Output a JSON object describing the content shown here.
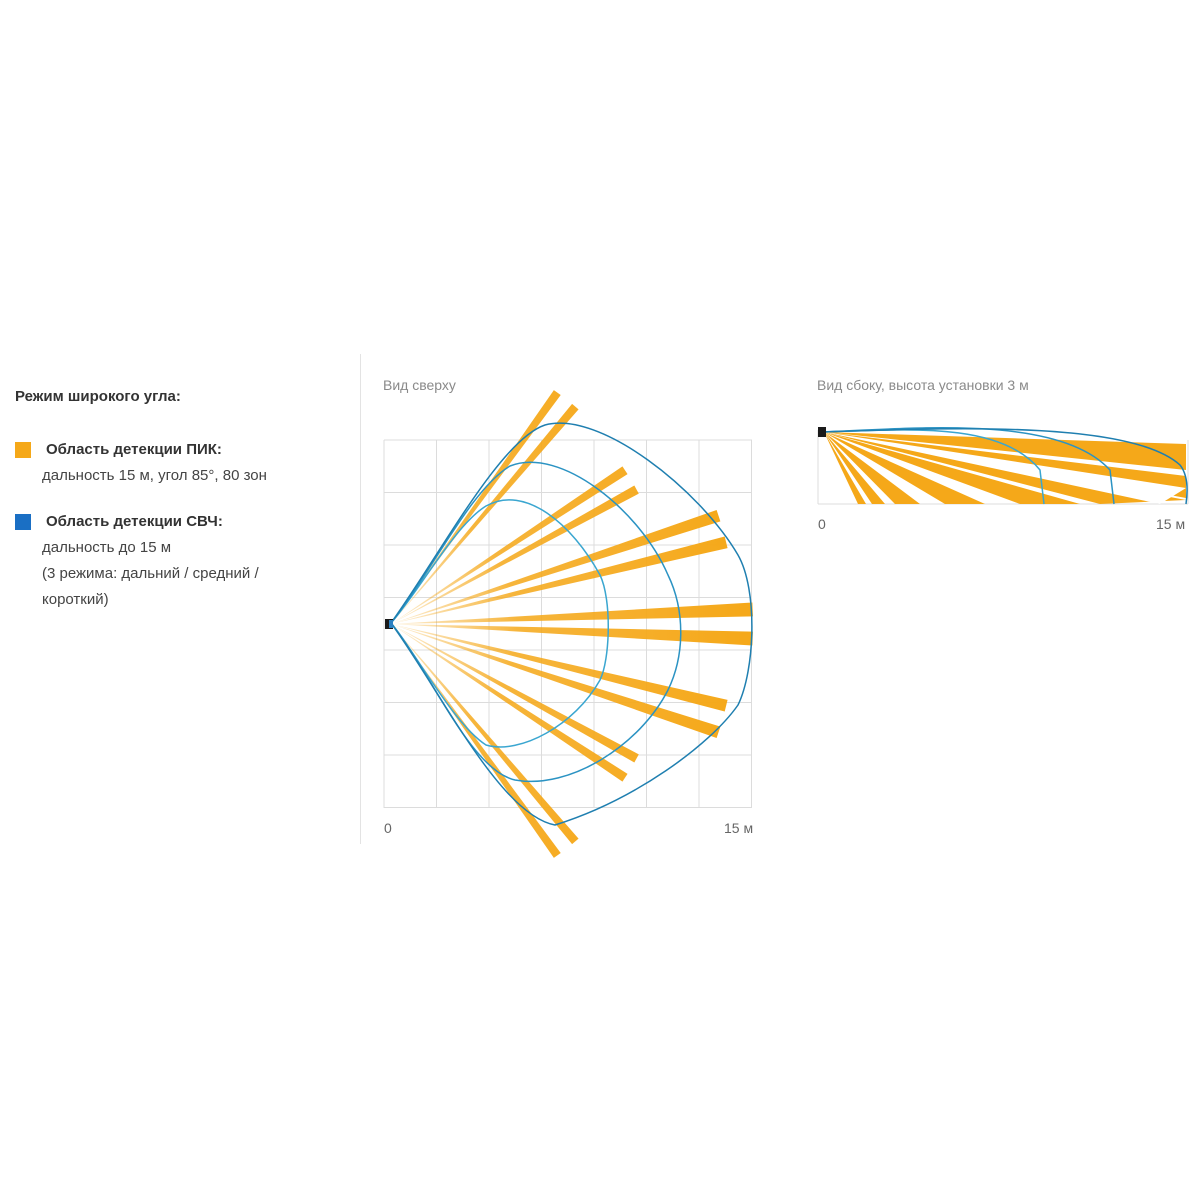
{
  "legend": {
    "title": "Режим широкого угла:",
    "pir": {
      "title": "Область детекции ПИК:",
      "line1": "дальность 15 м, угол 85°, 80 зон",
      "color": "#f5a819"
    },
    "mw": {
      "title": "Область детекции СВЧ:",
      "line1": "дальность до 15 м",
      "line2": "(3 режима: дальний / средний /",
      "line3": "короткий)",
      "color": "#1a6fc4"
    }
  },
  "top_view": {
    "label": "Вид сверху",
    "axis_start": "0",
    "axis_end": "15 м",
    "range_m": 15,
    "pir_angle_deg": 85
  },
  "side_view": {
    "label": "Вид сбоку, высота установки 3 м",
    "axis_start": "0",
    "axis_end": "15 м",
    "mount_height_m": 3,
    "range_m": 15
  },
  "colors": {
    "pir": "#f5a819",
    "mw_outer": "#1f7fb0",
    "mw_inner": "#3aa6d0",
    "grid": "#dcdcdc",
    "sensor": "#1a1a1a"
  }
}
